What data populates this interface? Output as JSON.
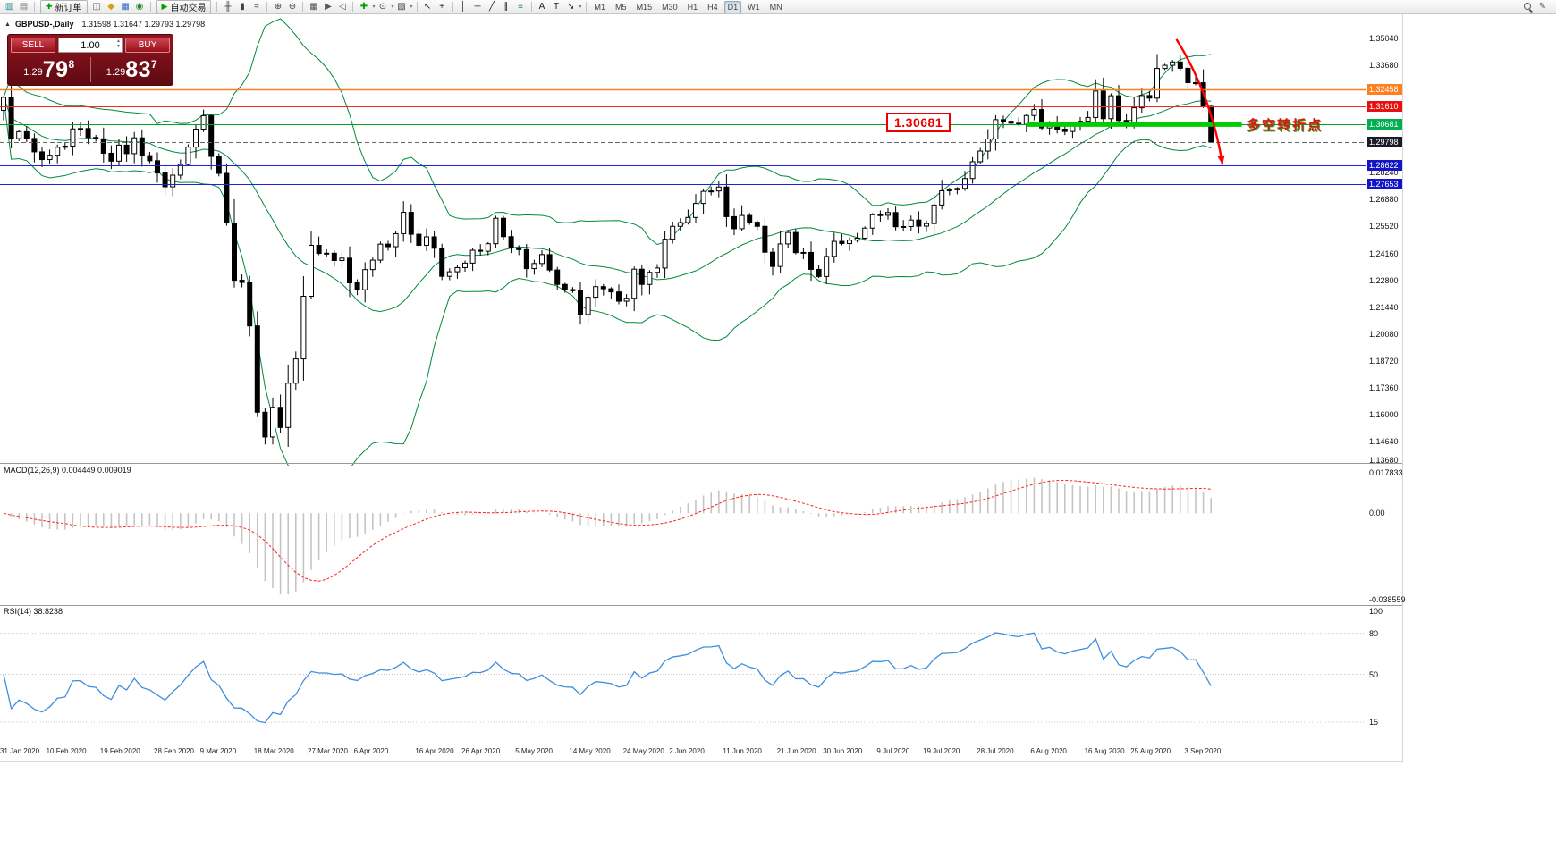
{
  "toolbar": {
    "items": [
      {
        "t": "icon",
        "n": "new-chart-icon",
        "g": "▥",
        "c": "#2e8b8b"
      },
      {
        "t": "icon",
        "n": "profiles-icon",
        "g": "▤",
        "c": "#808080"
      },
      {
        "t": "sep"
      },
      {
        "t": "btn",
        "n": "new-order-button",
        "g": "✚",
        "c": "#00a000",
        "label": "新订单"
      },
      {
        "t": "icon",
        "n": "chart-window-icon",
        "g": "◫",
        "c": "#606060"
      },
      {
        "t": "icon",
        "n": "compass-icon",
        "g": "◆",
        "c": "#d4a017"
      },
      {
        "t": "icon",
        "n": "navigator-icon",
        "g": "▦",
        "c": "#3b6fc4"
      },
      {
        "t": "icon",
        "n": "market-watch-icon",
        "g": "◉",
        "c": "#2d8a2d"
      },
      {
        "t": "sep"
      },
      {
        "t": "btn",
        "n": "autotrade-button",
        "g": "▶",
        "c": "#00a000",
        "label": "自动交易"
      },
      {
        "t": "sep"
      },
      {
        "t": "icon",
        "n": "bars-mode-icon",
        "g": "╫",
        "c": "#404040"
      },
      {
        "t": "icon",
        "n": "candles-mode-icon",
        "g": "▮",
        "c": "#404040"
      },
      {
        "t": "icon",
        "n": "line-mode-icon",
        "g": "≈",
        "c": "#404040"
      },
      {
        "t": "sep"
      },
      {
        "t": "icon",
        "n": "zoom-in-icon",
        "g": "⊕",
        "c": "#404040"
      },
      {
        "t": "icon",
        "n": "zoom-out-icon",
        "g": "⊖",
        "c": "#404040"
      },
      {
        "t": "sep"
      },
      {
        "t": "icon",
        "n": "tile-windows-icon",
        "g": "▦",
        "c": "#555555"
      },
      {
        "t": "icon",
        "n": "auto-scroll-icon",
        "g": "▶",
        "c": "#555555"
      },
      {
        "t": "icon",
        "n": "chart-shift-icon",
        "g": "◁",
        "c": "#555555"
      },
      {
        "t": "sep"
      },
      {
        "t": "icon",
        "n": "add-indicator-icon",
        "g": "✚",
        "c": "#00a000",
        "arrow": true
      },
      {
        "t": "icon",
        "n": "periods-icon",
        "g": "⊙",
        "c": "#404040",
        "arrow": true
      },
      {
        "t": "icon",
        "n": "templates-icon",
        "g": "▧",
        "c": "#404040",
        "arrow": true
      },
      {
        "t": "sep"
      },
      {
        "t": "icon",
        "n": "cursor-icon",
        "g": "↖",
        "c": "#202020"
      },
      {
        "t": "icon",
        "n": "crosshair-icon",
        "g": "+",
        "c": "#202020"
      },
      {
        "t": "sep"
      },
      {
        "t": "icon",
        "n": "vline-icon",
        "g": "│",
        "c": "#202020"
      },
      {
        "t": "icon",
        "n": "hline-icon",
        "g": "─",
        "c": "#202020"
      },
      {
        "t": "icon",
        "n": "trendline-icon",
        "g": "╱",
        "c": "#202020"
      },
      {
        "t": "icon",
        "n": "channel-icon",
        "g": "∥",
        "c": "#202020"
      },
      {
        "t": "icon",
        "n": "fibonacci-icon",
        "g": "≡",
        "c": "#2a8a5a"
      },
      {
        "t": "sep"
      },
      {
        "t": "icon",
        "n": "text-icon",
        "g": "A",
        "c": "#202020"
      },
      {
        "t": "icon",
        "n": "label-icon",
        "g": "T",
        "c": "#202020"
      },
      {
        "t": "icon",
        "n": "arrows-icon",
        "g": "↘",
        "c": "#202020",
        "arrow": true
      },
      {
        "t": "sep"
      }
    ],
    "timeframes": [
      "M1",
      "M5",
      "M15",
      "M30",
      "H1",
      "H4",
      "D1",
      "W1",
      "MN"
    ],
    "active_timeframe": "D1"
  },
  "chart": {
    "title": "GBPUSD-,Daily",
    "ohlc": "1.31598 1.31647 1.29793 1.29798",
    "collapse_icon": "▲"
  },
  "trade_panel": {
    "sell_label": "SELL",
    "buy_label": "BUY",
    "volume": "1.00",
    "sell_price": {
      "small": "1.29",
      "big": "79",
      "sup": "8"
    },
    "buy_price": {
      "small": "1.29",
      "big": "83",
      "sup": "7"
    }
  },
  "annotations": {
    "support_label": "1.30681",
    "turning_point": "多空转折点",
    "thick_line": {
      "price": 1.30681,
      "from_bar": 133,
      "to_bar": 161
    },
    "arrow": {
      "from_bar": 152.5,
      "from_price": 1.35,
      "to_bar": 158.5,
      "to_price": 1.2865
    }
  },
  "levels": [
    {
      "name": "resistance-upper",
      "price": 1.32458,
      "text": "1.32458",
      "color": "#ff7f1e",
      "badge": "#ff7f1e",
      "style": "solid"
    },
    {
      "name": "resistance",
      "price": 1.3161,
      "text": "1.31610",
      "color": "#ff2222",
      "badge": "#e81111",
      "style": "solid"
    },
    {
      "name": "pivot-green",
      "price": 1.30681,
      "text": "1.30681",
      "color": "#00a020",
      "badge": "#00b050",
      "style": "solid"
    },
    {
      "name": "current-price",
      "price": 1.29798,
      "text": "1.29798",
      "color": "#666666",
      "badge": "#1b1b2a",
      "style": "dash"
    },
    {
      "name": "support-1",
      "price": 1.28622,
      "text": "1.28622",
      "color": "#2020dd",
      "badge": "#1515c8",
      "style": "solid"
    },
    {
      "name": "support-2",
      "price": 1.27653,
      "text": "1.27653",
      "color": "#2020dd",
      "badge": "#1515c8",
      "style": "solid"
    }
  ],
  "axes": {
    "price_labels": [
      "1.35040",
      "1.33680",
      "1.32320",
      "1.30960",
      "1.29600",
      "1.28240",
      "1.26880",
      "1.25520",
      "1.24160",
      "1.22800",
      "1.21440",
      "1.20080",
      "1.18720",
      "1.17360",
      "1.16000",
      "1.14640",
      "1.13680"
    ],
    "dates": [
      {
        "label": "31 Jan 2020",
        "i": 0
      },
      {
        "label": "10 Feb 2020",
        "i": 6
      },
      {
        "label": "19 Feb 2020",
        "i": 13
      },
      {
        "label": "28 Feb 2020",
        "i": 20
      },
      {
        "label": "9 Mar 2020",
        "i": 26
      },
      {
        "label": "18 Mar 2020",
        "i": 33
      },
      {
        "label": "27 Mar 2020",
        "i": 40
      },
      {
        "label": "6 Apr 2020",
        "i": 46
      },
      {
        "label": "16 Apr 2020",
        "i": 54
      },
      {
        "label": "26 Apr 2020",
        "i": 60
      },
      {
        "label": "5 May 2020",
        "i": 67
      },
      {
        "label": "14 May 2020",
        "i": 74
      },
      {
        "label": "24 May 2020",
        "i": 81
      },
      {
        "label": "2 Jun 2020",
        "i": 87
      },
      {
        "label": "11 Jun 2020",
        "i": 94
      },
      {
        "label": "21 Jun 2020",
        "i": 101
      },
      {
        "label": "30 Jun 2020",
        "i": 107
      },
      {
        "label": "9 Jul 2020",
        "i": 114
      },
      {
        "label": "19 Jul 2020",
        "i": 120
      },
      {
        "label": "28 Jul 2020",
        "i": 127
      },
      {
        "label": "6 Aug 2020",
        "i": 134
      },
      {
        "label": "16 Aug 2020",
        "i": 141
      },
      {
        "label": "25 Aug 2020",
        "i": 147
      },
      {
        "label": "3 Sep 2020",
        "i": 154
      }
    ]
  },
  "macd": {
    "label": "MACD(12,26,9) 0.004449 0.009019",
    "scale": [
      {
        "t": "0.017833",
        "v": 0.017833
      },
      {
        "t": "0.00",
        "v": 0
      },
      {
        "t": "-0.038559",
        "v": -0.038559
      }
    ]
  },
  "rsi": {
    "label": "RSI(14) 38.8238",
    "scale": [
      {
        "t": "100",
        "v": 100
      },
      {
        "t": "80",
        "v": 80
      },
      {
        "t": "50",
        "v": 50
      },
      {
        "t": "15",
        "v": 15
      }
    ]
  },
  "chart_data": {
    "type": "candlestick",
    "symbol": "GBPUSD",
    "timeframe": "Daily",
    "current_bar": {
      "open": 1.31598,
      "high": 1.31647,
      "low": 1.29793,
      "close": 1.29798
    },
    "price_range": {
      "min": 1.136,
      "max": 1.359
    },
    "macd_range": {
      "min": -0.0405,
      "max": 0.022
    },
    "rsi_range": {
      "min": 0,
      "max": 100
    },
    "indicators": {
      "bollinger": {
        "period": 20,
        "deviation": 2,
        "color": "#008a3c"
      },
      "macd": {
        "fast": 12,
        "slow": 26,
        "signal": 9,
        "current_main": 0.004449,
        "current_signal": 0.009019
      },
      "rsi": {
        "period": 14,
        "current": 38.8238,
        "levels": [
          80,
          50,
          15
        ]
      }
    },
    "closes": [
      1.3206,
      1.2997,
      1.3032,
      1.2998,
      1.293,
      1.2891,
      1.2913,
      1.2953,
      1.2959,
      1.3046,
      1.3048,
      1.3003,
      1.2996,
      1.2923,
      1.2883,
      1.2964,
      1.2921,
      1.3001,
      1.2911,
      1.2885,
      1.2823,
      1.2753,
      1.2812,
      1.2866,
      1.2954,
      1.3045,
      1.3113,
      1.2907,
      1.2821,
      1.257,
      1.228,
      1.2269,
      1.2049,
      1.1612,
      1.1487,
      1.1637,
      1.1535,
      1.1759,
      1.1882,
      1.2199,
      1.2457,
      1.2416,
      1.2417,
      1.238,
      1.2392,
      1.2267,
      1.2232,
      1.2334,
      1.2382,
      1.2463,
      1.245,
      1.2516,
      1.2624,
      1.2513,
      1.2457,
      1.25,
      1.2442,
      1.23,
      1.2323,
      1.2344,
      1.2367,
      1.2432,
      1.2427,
      1.2465,
      1.2594,
      1.2501,
      1.2443,
      1.2435,
      1.2339,
      1.2365,
      1.241,
      1.2332,
      1.2259,
      1.2233,
      1.2227,
      1.2107,
      1.2194,
      1.2248,
      1.2237,
      1.2221,
      1.2174,
      1.2189,
      1.2336,
      1.2259,
      1.232,
      1.2342,
      1.2488,
      1.2553,
      1.2572,
      1.2598,
      1.2669,
      1.273,
      1.2732,
      1.2752,
      1.2602,
      1.2541,
      1.2608,
      1.2574,
      1.2553,
      1.2422,
      1.235,
      1.2464,
      1.2522,
      1.242,
      1.2421,
      1.2335,
      1.2299,
      1.2401,
      1.2477,
      1.2466,
      1.2483,
      1.2493,
      1.2544,
      1.2612,
      1.2609,
      1.2623,
      1.2551,
      1.2552,
      1.2585,
      1.2554,
      1.2567,
      1.2661,
      1.2733,
      1.2738,
      1.2745,
      1.2795,
      1.288,
      1.2934,
      1.2995,
      1.3093,
      1.3085,
      1.3075,
      1.3069,
      1.3114,
      1.3144,
      1.3051,
      1.3074,
      1.3045,
      1.3033,
      1.3066,
      1.3085,
      1.3104,
      1.3238,
      1.3098,
      1.3214,
      1.3089,
      1.3067,
      1.3153,
      1.3215,
      1.3202,
      1.3352,
      1.3368,
      1.3385,
      1.3353,
      1.328,
      1.328,
      1.316,
      1.298
    ]
  }
}
